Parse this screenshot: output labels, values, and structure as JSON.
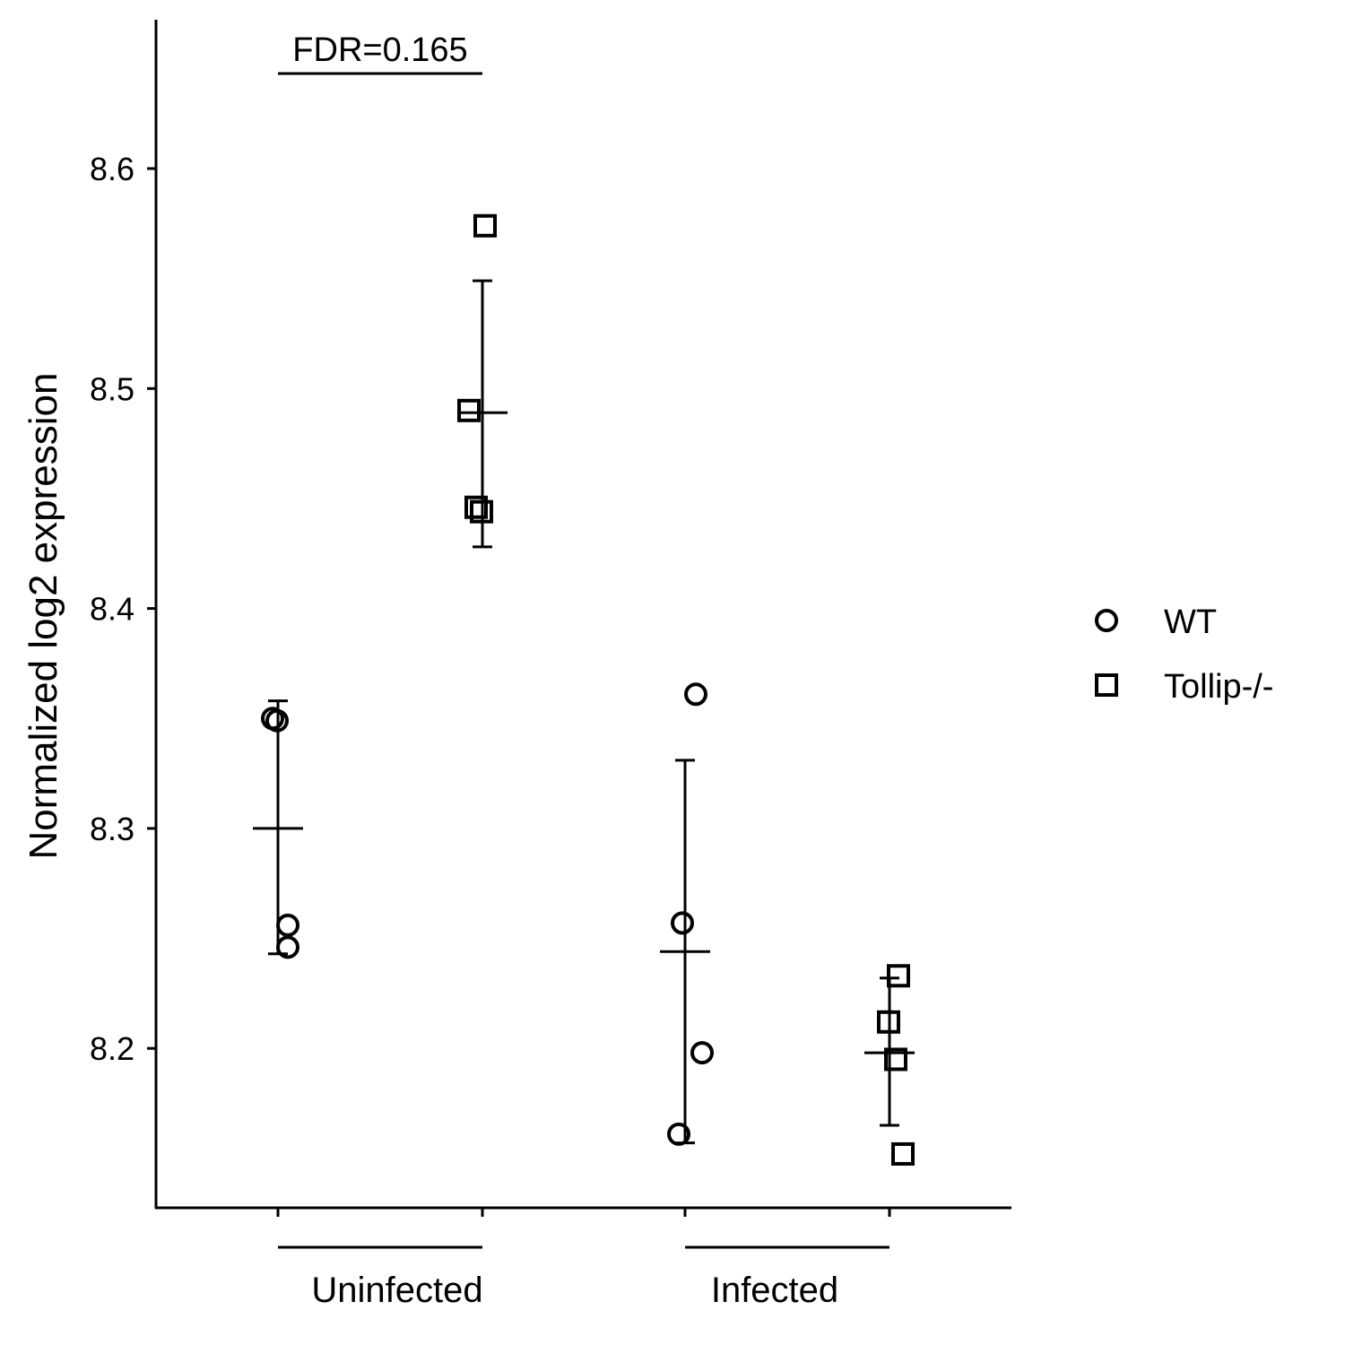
{
  "chart_data": {
    "type": "scatter",
    "title": "",
    "xlabel": "",
    "ylabel": "Normalized log2 expression",
    "ylim": [
      8.13,
      8.66
    ],
    "yticks": [
      8.2,
      8.3,
      8.4,
      8.5,
      8.6
    ],
    "ytick_labels": [
      "8.2",
      "8.3",
      "8.4",
      "8.5",
      "8.6"
    ],
    "grid": false,
    "legend_position": "right",
    "groups": [
      {
        "label": "Uninfected",
        "series": [
          "WT",
          "Tollip-/-"
        ]
      },
      {
        "label": "Infected",
        "series": [
          "WT",
          "Tollip-/-"
        ]
      }
    ],
    "series": [
      {
        "name": "WT",
        "marker": "circle",
        "color": "#000000"
      },
      {
        "name": "Tollip-/-",
        "marker": "square",
        "color": "#000000"
      }
    ],
    "data": [
      {
        "group": "Uninfected",
        "series": "WT",
        "mean": 8.3,
        "err_low": 8.243,
        "err_high": 8.358,
        "points": [
          {
            "jitter": -0.06,
            "y": 8.35
          },
          {
            "jitter": -0.01,
            "y": 8.349
          },
          {
            "jitter": 0.11,
            "y": 8.256
          },
          {
            "jitter": 0.11,
            "y": 8.246
          }
        ]
      },
      {
        "group": "Uninfected",
        "series": "Tollip-/-",
        "mean": 8.489,
        "err_low": 8.428,
        "err_high": 8.549,
        "points": [
          {
            "jitter": 0.03,
            "y": 8.574
          },
          {
            "jitter": -0.15,
            "y": 8.49
          },
          {
            "jitter": -0.07,
            "y": 8.446
          },
          {
            "jitter": -0.01,
            "y": 8.444
          }
        ]
      },
      {
        "group": "Infected",
        "series": "WT",
        "mean": 8.244,
        "err_low": 8.157,
        "err_high": 8.331,
        "points": [
          {
            "jitter": 0.12,
            "y": 8.361
          },
          {
            "jitter": -0.03,
            "y": 8.257
          },
          {
            "jitter": 0.19,
            "y": 8.198
          },
          {
            "jitter": -0.07,
            "y": 8.161
          }
        ]
      },
      {
        "group": "Infected",
        "series": "Tollip-/-",
        "mean": 8.198,
        "err_low": 8.165,
        "err_high": 8.232,
        "points": [
          {
            "jitter": 0.1,
            "y": 8.233
          },
          {
            "jitter": -0.01,
            "y": 8.212
          },
          {
            "jitter": 0.07,
            "y": 8.195
          },
          {
            "jitter": 0.15,
            "y": 8.152
          }
        ]
      }
    ],
    "annotations": [
      {
        "text": "FDR=0.165",
        "group": "Uninfected"
      }
    ]
  }
}
